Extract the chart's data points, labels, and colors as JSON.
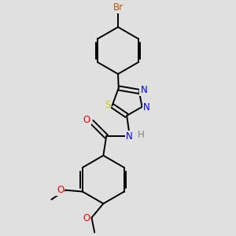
{
  "background_color": "#e0e0e0",
  "bond_color": "#000000",
  "atom_colors": {
    "Br": "#b05a00",
    "S": "#cccc00",
    "N": "#0000ff",
    "O": "#ff0000",
    "H": "#808080",
    "C": "#000000"
  },
  "font_size_atoms": 8.5,
  "line_width": 1.4,
  "fig_width": 3.0,
  "fig_height": 3.0,
  "dpi": 100
}
